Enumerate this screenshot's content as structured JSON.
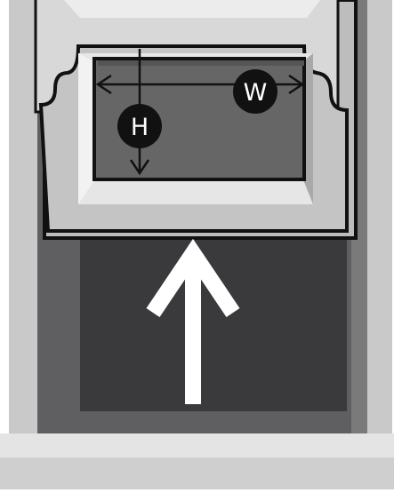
{
  "diagram": {
    "labels": {
      "height": "H",
      "width": "W"
    },
    "colors": {
      "outline": "#111111",
      "frame_light": "#d6d6d6",
      "frame_mid": "#bdbdbd",
      "frame_dark": "#6a6a6a",
      "interior": "#3a393b",
      "glass": "#666666",
      "sill": "#e4e4e4",
      "arrow": "#ffffff"
    }
  }
}
